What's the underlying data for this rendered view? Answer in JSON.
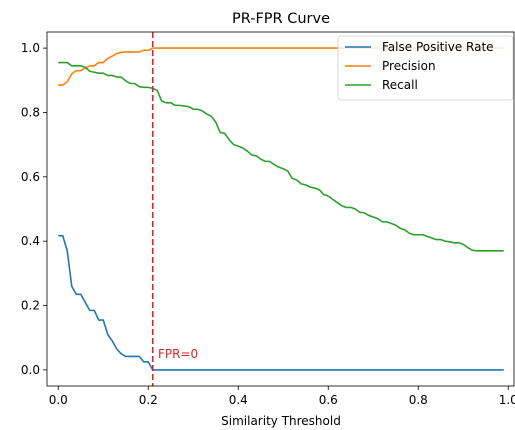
{
  "chart_data": {
    "type": "line",
    "title": "PR-FPR Curve",
    "xlabel": "Similarity Threshold",
    "ylabel": "",
    "xlim": [
      -0.025,
      1.015
    ],
    "ylim": [
      -0.05,
      1.05
    ],
    "xticks": [
      0.0,
      0.2,
      0.4,
      0.6,
      0.8,
      1.0
    ],
    "xtick_labels": [
      "0.0",
      "0.2",
      "0.4",
      "0.6",
      "0.8",
      "1.0"
    ],
    "yticks": [
      0.0,
      0.2,
      0.4,
      0.6,
      0.8,
      1.0
    ],
    "ytick_labels": [
      "0.0",
      "0.2",
      "0.4",
      "0.6",
      "0.8",
      "1.0"
    ],
    "grid": false,
    "legend_position": "top-right",
    "series": [
      {
        "name": "False Positive Rate",
        "color": "#1f77b4",
        "x": [
          0.0,
          0.01,
          0.02,
          0.03,
          0.04,
          0.05,
          0.06,
          0.07,
          0.08,
          0.09,
          0.1,
          0.11,
          0.12,
          0.13,
          0.14,
          0.15,
          0.16,
          0.17,
          0.18,
          0.19,
          0.2,
          0.21,
          0.22,
          0.3,
          0.4,
          0.5,
          0.6,
          0.7,
          0.8,
          0.9,
          0.99
        ],
        "y": [
          0.417,
          0.417,
          0.37,
          0.26,
          0.235,
          0.235,
          0.21,
          0.185,
          0.185,
          0.155,
          0.155,
          0.11,
          0.09,
          0.065,
          0.05,
          0.042,
          0.042,
          0.042,
          0.042,
          0.025,
          0.025,
          0.0,
          0.0,
          0.0,
          0.0,
          0.0,
          0.0,
          0.0,
          0.0,
          0.0,
          0.0
        ]
      },
      {
        "name": "Precision",
        "color": "#ff7f0e",
        "x": [
          0.0,
          0.01,
          0.02,
          0.03,
          0.04,
          0.05,
          0.06,
          0.07,
          0.08,
          0.09,
          0.1,
          0.11,
          0.12,
          0.13,
          0.14,
          0.15,
          0.16,
          0.17,
          0.18,
          0.19,
          0.2,
          0.21,
          0.22,
          0.3,
          0.4,
          0.5,
          0.6,
          0.7,
          0.8,
          0.9,
          0.99
        ],
        "y": [
          0.885,
          0.885,
          0.895,
          0.92,
          0.93,
          0.93,
          0.938,
          0.945,
          0.945,
          0.955,
          0.955,
          0.968,
          0.975,
          0.983,
          0.987,
          0.988,
          0.988,
          0.988,
          0.988,
          0.993,
          0.993,
          1.0,
          1.0,
          1.0,
          1.0,
          1.0,
          1.0,
          1.0,
          1.0,
          1.0,
          1.0
        ]
      },
      {
        "name": "Recall",
        "color": "#2ca02c",
        "x": [
          0.0,
          0.01,
          0.02,
          0.03,
          0.04,
          0.05,
          0.06,
          0.07,
          0.08,
          0.09,
          0.1,
          0.11,
          0.12,
          0.13,
          0.14,
          0.15,
          0.16,
          0.17,
          0.18,
          0.19,
          0.2,
          0.21,
          0.22,
          0.23,
          0.24,
          0.25,
          0.26,
          0.27,
          0.28,
          0.29,
          0.3,
          0.31,
          0.32,
          0.33,
          0.34,
          0.35,
          0.36,
          0.37,
          0.38,
          0.39,
          0.4,
          0.41,
          0.42,
          0.43,
          0.44,
          0.45,
          0.46,
          0.47,
          0.48,
          0.49,
          0.5,
          0.51,
          0.52,
          0.53,
          0.54,
          0.55,
          0.56,
          0.57,
          0.58,
          0.59,
          0.6,
          0.61,
          0.62,
          0.63,
          0.64,
          0.65,
          0.66,
          0.67,
          0.68,
          0.69,
          0.7,
          0.71,
          0.72,
          0.73,
          0.74,
          0.75,
          0.76,
          0.77,
          0.78,
          0.79,
          0.8,
          0.81,
          0.82,
          0.83,
          0.84,
          0.85,
          0.86,
          0.87,
          0.88,
          0.89,
          0.9,
          0.91,
          0.92,
          0.93,
          0.94,
          0.95,
          0.96,
          0.97,
          0.98,
          0.99
        ],
        "y": [
          0.955,
          0.955,
          0.955,
          0.945,
          0.945,
          0.945,
          0.94,
          0.928,
          0.925,
          0.922,
          0.922,
          0.915,
          0.915,
          0.91,
          0.91,
          0.898,
          0.89,
          0.89,
          0.88,
          0.878,
          0.878,
          0.875,
          0.868,
          0.835,
          0.83,
          0.83,
          0.822,
          0.822,
          0.82,
          0.818,
          0.81,
          0.81,
          0.805,
          0.795,
          0.788,
          0.77,
          0.738,
          0.735,
          0.715,
          0.7,
          0.695,
          0.69,
          0.68,
          0.668,
          0.665,
          0.655,
          0.648,
          0.648,
          0.638,
          0.63,
          0.625,
          0.618,
          0.595,
          0.59,
          0.578,
          0.575,
          0.568,
          0.565,
          0.56,
          0.545,
          0.54,
          0.53,
          0.52,
          0.51,
          0.505,
          0.505,
          0.5,
          0.49,
          0.488,
          0.48,
          0.475,
          0.47,
          0.46,
          0.46,
          0.455,
          0.45,
          0.44,
          0.435,
          0.425,
          0.42,
          0.42,
          0.42,
          0.415,
          0.41,
          0.405,
          0.405,
          0.4,
          0.398,
          0.395,
          0.395,
          0.39,
          0.38,
          0.372,
          0.37,
          0.37,
          0.37,
          0.37,
          0.37,
          0.37,
          0.37
        ]
      }
    ],
    "annotations": [
      {
        "type": "vline",
        "x": 0.21,
        "color": "#d62728",
        "style": "dashed"
      },
      {
        "type": "text",
        "text": "FPR=0",
        "x": 0.215,
        "y": 0.05,
        "color": "#d62728"
      }
    ]
  }
}
